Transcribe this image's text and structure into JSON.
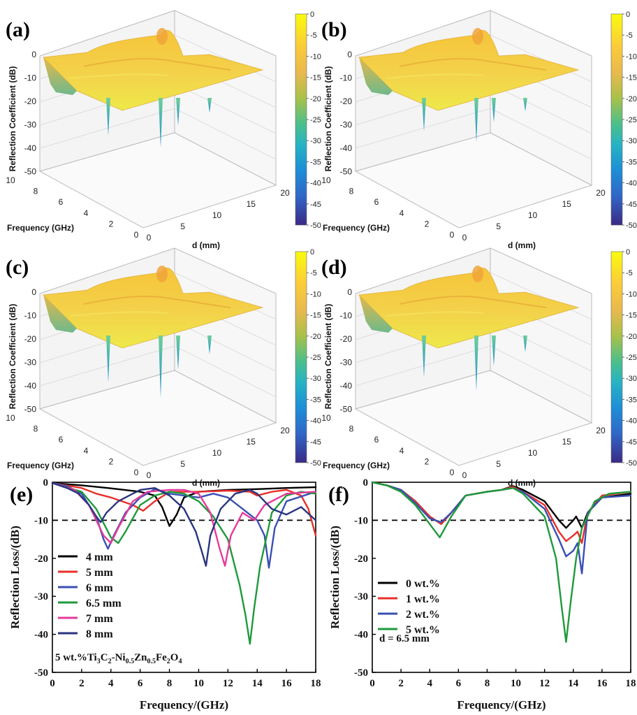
{
  "surface_panels": [
    {
      "label": "(a)",
      "zlabel": "Reflection Coefficient (dB)",
      "xlabel": "Frequency (GHz)",
      "ylabel": "d (mm)",
      "z_ticks": [
        "0",
        "-10",
        "-20",
        "-30",
        "-40",
        "-50"
      ],
      "freq_ticks": [
        "10",
        "8",
        "6",
        "4",
        "2",
        "0"
      ],
      "d_ticks": [
        "0",
        "5",
        "10",
        "15",
        "20"
      ],
      "colorbar_ticks": [
        "0",
        "-5",
        "-10",
        "-15",
        "-20",
        "-25",
        "-30",
        "-35",
        "-40",
        "-45",
        "-50"
      ],
      "min_value_db": -36
    },
    {
      "label": "(b)",
      "zlabel": "Reflection Coefficient (dB)",
      "xlabel": "Frequency (GHz)",
      "ylabel": "d (mm)",
      "z_ticks": [
        "0",
        "-10",
        "-20",
        "-30",
        "-40",
        "-50"
      ],
      "freq_ticks": [
        "10",
        "8",
        "6",
        "4",
        "2",
        "0"
      ],
      "d_ticks": [
        "0",
        "5",
        "10",
        "15",
        "20"
      ],
      "colorbar_ticks": [
        "0",
        "-5",
        "-10",
        "-15",
        "-20",
        "-25",
        "-30",
        "-35",
        "-40",
        "-45",
        "-50"
      ],
      "min_value_db": -32
    },
    {
      "label": "(c)",
      "zlabel": "Reflection Coefficient (dB)",
      "xlabel": "Frequency (GHz)",
      "ylabel": "d (mm)",
      "z_ticks": [
        "0",
        "-10",
        "-20",
        "-30",
        "-40",
        "-50"
      ],
      "freq_ticks": [
        "10",
        "8",
        "6",
        "4",
        "2",
        "0"
      ],
      "d_ticks": [
        "0",
        "5",
        "10",
        "15",
        "20"
      ],
      "colorbar_ticks": [
        "0",
        "-5",
        "-10",
        "-15",
        "-20",
        "-25",
        "-30",
        "-35",
        "-40",
        "-45",
        "-50"
      ],
      "min_value_db": -45
    },
    {
      "label": "(d)",
      "zlabel": "Reflection Coefficient (dB)",
      "xlabel": "Frequency (GHz)",
      "ylabel": "d (mm)",
      "z_ticks": [
        "0",
        "-10",
        "-20",
        "-30",
        "-40",
        "-50"
      ],
      "freq_ticks": [
        "10",
        "8",
        "6",
        "4",
        "2",
        "0"
      ],
      "d_ticks": [
        "0",
        "5",
        "10",
        "15",
        "20"
      ],
      "colorbar_ticks": [
        "0",
        "-5",
        "-10",
        "-15",
        "-20",
        "-25",
        "-30",
        "-35",
        "-40",
        "-45",
        "-50"
      ],
      "min_value_db": -40
    }
  ],
  "chart_data": [
    {
      "type": "line",
      "panel": "(e)",
      "xlabel": "Frequency/(GHz)",
      "ylabel": "Reflection Loss/(dB)",
      "xlim": [
        0,
        18
      ],
      "ylim": [
        -50,
        0
      ],
      "x_ticks": [
        0,
        2,
        4,
        6,
        8,
        10,
        12,
        14,
        16,
        18
      ],
      "y_ticks": [
        0,
        -10,
        -20,
        -30,
        -40,
        -50
      ],
      "reference_line_db": -10,
      "legend_position": "lower-left",
      "annotation": {
        "prefix": "5 wt.%Ti",
        "s1": "3",
        "p1": "C",
        "s2": "2",
        "p2": "-Ni",
        "s3": "0.5",
        "p3": "Zn",
        "s4": "0.5",
        "p4": "Fe",
        "s5": "2",
        "p5": "O",
        "s6": "4"
      },
      "series": [
        {
          "name": "4 mm",
          "color": "#000000",
          "points": [
            [
              0,
              -0.2
            ],
            [
              2,
              -0.8
            ],
            [
              4,
              -1.6
            ],
            [
              6,
              -2.5
            ],
            [
              7,
              -3.5
            ],
            [
              7.5,
              -6.5
            ],
            [
              8,
              -11.5
            ],
            [
              8.5,
              -8.5
            ],
            [
              9,
              -4
            ],
            [
              10,
              -2.5
            ],
            [
              12,
              -2
            ],
            [
              14,
              -1.8
            ],
            [
              16,
              -1.5
            ],
            [
              18,
              -1.3
            ]
          ]
        },
        {
          "name": "5 mm",
          "color": "#e8302a",
          "points": [
            [
              0,
              -0.2
            ],
            [
              2,
              -1.5
            ],
            [
              3,
              -3
            ],
            [
              4,
              -4
            ],
            [
              5.5,
              -6
            ],
            [
              6.2,
              -7.5
            ],
            [
              7,
              -5
            ],
            [
              8,
              -2.5
            ],
            [
              10,
              -2.5
            ],
            [
              12,
              -2.2
            ],
            [
              13.5,
              -2.5
            ],
            [
              14,
              -3.5
            ],
            [
              15,
              -2.5
            ],
            [
              16,
              -2
            ],
            [
              17,
              -3.5
            ],
            [
              17.5,
              -7
            ],
            [
              18,
              -14
            ]
          ]
        },
        {
          "name": "6 mm",
          "color": "#3a4fb3",
          "points": [
            [
              0,
              -0.2
            ],
            [
              1,
              -1
            ],
            [
              2,
              -3
            ],
            [
              3,
              -9
            ],
            [
              3.5,
              -15
            ],
            [
              3.8,
              -17.5
            ],
            [
              4.2,
              -14
            ],
            [
              5,
              -8
            ],
            [
              6,
              -4
            ],
            [
              7,
              -1.8
            ],
            [
              8,
              -3
            ],
            [
              10,
              -4
            ],
            [
              11,
              -3
            ],
            [
              12,
              -4
            ],
            [
              13,
              -7
            ],
            [
              14,
              -10
            ],
            [
              14.5,
              -14
            ],
            [
              14.8,
              -22.5
            ],
            [
              15.2,
              -12
            ],
            [
              16,
              -5
            ],
            [
              18,
              -2.5
            ]
          ]
        },
        {
          "name": "6.5 mm",
          "color": "#1e9a3a",
          "points": [
            [
              0,
              -0.2
            ],
            [
              2,
              -2.5
            ],
            [
              3,
              -7
            ],
            [
              4,
              -14.5
            ],
            [
              4.5,
              -16
            ],
            [
              5,
              -13
            ],
            [
              6,
              -6
            ],
            [
              7,
              -3.5
            ],
            [
              8,
              -2.5
            ],
            [
              9,
              -3
            ],
            [
              10,
              -5
            ],
            [
              11,
              -9
            ],
            [
              12,
              -15
            ],
            [
              12.8,
              -27
            ],
            [
              13.2,
              -35
            ],
            [
              13.5,
              -42.5
            ],
            [
              13.8,
              -33
            ],
            [
              14.2,
              -22
            ],
            [
              15,
              -8
            ],
            [
              16,
              -3.5
            ],
            [
              17,
              -2.5
            ],
            [
              18,
              -3
            ]
          ]
        },
        {
          "name": "7 mm",
          "color": "#e63a9b",
          "points": [
            [
              0,
              -0.2
            ],
            [
              1.5,
              -2
            ],
            [
              2.5,
              -6
            ],
            [
              3.5,
              -14
            ],
            [
              4,
              -16
            ],
            [
              4.5,
              -12
            ],
            [
              5.5,
              -5
            ],
            [
              6.5,
              -2.5
            ],
            [
              8,
              -2
            ],
            [
              9,
              -2
            ],
            [
              10,
              -3
            ],
            [
              10.8,
              -8
            ],
            [
              11.4,
              -17
            ],
            [
              11.8,
              -22
            ],
            [
              12.2,
              -14
            ],
            [
              13,
              -8
            ],
            [
              13.8,
              -10
            ],
            [
              14.5,
              -6
            ],
            [
              16,
              -3
            ],
            [
              18,
              -2.5
            ]
          ]
        },
        {
          "name": "8 mm",
          "color": "#2a3580",
          "points": [
            [
              0,
              -0.2
            ],
            [
              1,
              -1.5
            ],
            [
              1.8,
              -3
            ],
            [
              2.5,
              -6
            ],
            [
              3,
              -9
            ],
            [
              3.3,
              -10.5
            ],
            [
              3.7,
              -8
            ],
            [
              4.5,
              -5
            ],
            [
              5.5,
              -3
            ],
            [
              6,
              -2
            ],
            [
              7,
              -1.5
            ],
            [
              8,
              -3.5
            ],
            [
              9,
              -7
            ],
            [
              9.8,
              -13
            ],
            [
              10.2,
              -18
            ],
            [
              10.5,
              -22
            ],
            [
              10.8,
              -14
            ],
            [
              11.5,
              -7
            ],
            [
              12.5,
              -3
            ],
            [
              13.5,
              -2
            ],
            [
              14,
              -3
            ],
            [
              15,
              -7
            ],
            [
              16,
              -8.5
            ],
            [
              17,
              -6.5
            ],
            [
              18,
              -10
            ]
          ]
        }
      ]
    },
    {
      "type": "line",
      "panel": "(f)",
      "xlabel": "Frequency/(GHz)",
      "ylabel": "Reflection Loss/(dB)",
      "xlim": [
        0,
        18
      ],
      "ylim": [
        -50,
        0
      ],
      "x_ticks": [
        0,
        2,
        4,
        6,
        8,
        10,
        12,
        14,
        16,
        18
      ],
      "y_ticks": [
        0,
        -10,
        -20,
        -30,
        -40,
        -50
      ],
      "reference_line_db": -10,
      "legend_position": "lower-left",
      "annotation_text": "d = 6.5 mm",
      "series": [
        {
          "name": "0 wt.%",
          "color": "#000000",
          "points": [
            [
              0,
              0
            ],
            [
              1,
              -0.8
            ],
            [
              2,
              -2
            ],
            [
              3,
              -5
            ],
            [
              4,
              -9
            ],
            [
              4.8,
              -11
            ],
            [
              5.5,
              -8
            ],
            [
              6.5,
              -3.5
            ],
            [
              8,
              -2.5
            ],
            [
              9,
              -2
            ],
            [
              9.8,
              -1
            ],
            [
              10.5,
              -2
            ],
            [
              12,
              -5
            ],
            [
              13,
              -10
            ],
            [
              13.5,
              -12
            ],
            [
              14,
              -10
            ],
            [
              14.2,
              -9
            ],
            [
              14.6,
              -12
            ],
            [
              15,
              -8
            ],
            [
              16,
              -4
            ],
            [
              18,
              -3
            ]
          ]
        },
        {
          "name": "1 wt.%",
          "color": "#e8302a",
          "points": [
            [
              0,
              0
            ],
            [
              1,
              -0.8
            ],
            [
              2,
              -2
            ],
            [
              3,
              -5
            ],
            [
              4,
              -9
            ],
            [
              4.8,
              -11
            ],
            [
              5.5,
              -8
            ],
            [
              6.5,
              -3.5
            ],
            [
              8,
              -2.5
            ],
            [
              9,
              -2
            ],
            [
              9.8,
              -1.2
            ],
            [
              10.5,
              -2.5
            ],
            [
              12,
              -6
            ],
            [
              13,
              -13
            ],
            [
              13.5,
              -15.5
            ],
            [
              14,
              -14
            ],
            [
              14.3,
              -13
            ],
            [
              14.6,
              -16
            ],
            [
              15,
              -8
            ],
            [
              16,
              -3.5
            ],
            [
              18,
              -2.5
            ]
          ]
        },
        {
          "name": "2 wt.%",
          "color": "#3a4fb3",
          "points": [
            [
              0,
              0
            ],
            [
              1,
              -0.8
            ],
            [
              2,
              -2
            ],
            [
              3,
              -5.5
            ],
            [
              4,
              -9.5
            ],
            [
              4.8,
              -10.5
            ],
            [
              5.5,
              -8
            ],
            [
              6.5,
              -3.5
            ],
            [
              8,
              -2.5
            ],
            [
              9,
              -2
            ],
            [
              9.8,
              -1.5
            ],
            [
              10.5,
              -2.5
            ],
            [
              12,
              -7
            ],
            [
              13,
              -15
            ],
            [
              13.5,
              -19.5
            ],
            [
              14,
              -18
            ],
            [
              14.3,
              -16
            ],
            [
              14.6,
              -24
            ],
            [
              15,
              -8
            ],
            [
              16,
              -4
            ],
            [
              18,
              -3.5
            ]
          ]
        },
        {
          "name": "5 wt.%",
          "color": "#1e9a3a",
          "points": [
            [
              0,
              0
            ],
            [
              1,
              -0.8
            ],
            [
              2,
              -2.5
            ],
            [
              3,
              -6
            ],
            [
              4,
              -11
            ],
            [
              4.7,
              -14.5
            ],
            [
              5.5,
              -9
            ],
            [
              6.5,
              -3.5
            ],
            [
              8,
              -2.5
            ],
            [
              9,
              -2
            ],
            [
              9.8,
              -1.5
            ],
            [
              10.5,
              -3
            ],
            [
              12,
              -9
            ],
            [
              12.8,
              -20
            ],
            [
              13.2,
              -33
            ],
            [
              13.5,
              -42
            ],
            [
              13.8,
              -32
            ],
            [
              14.2,
              -20
            ],
            [
              14.6,
              -12
            ],
            [
              15.5,
              -5
            ],
            [
              16.5,
              -3
            ],
            [
              18,
              -2.5
            ]
          ]
        }
      ]
    }
  ]
}
